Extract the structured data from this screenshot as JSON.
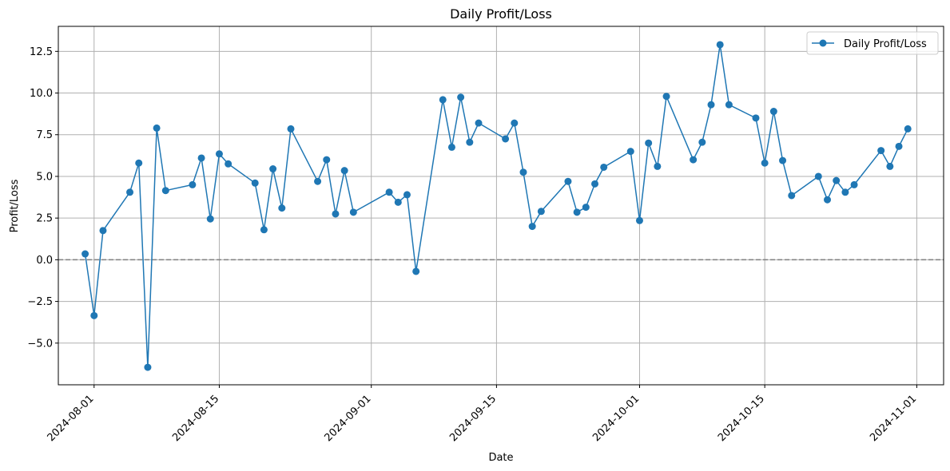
{
  "chart_data": {
    "type": "line",
    "title": "Daily Profit/Loss",
    "xlabel": "Date",
    "ylabel": "Profit/Loss",
    "xlim": [
      "2024-07-28",
      "2024-11-04"
    ],
    "ylim": [
      -7.5,
      14.0
    ],
    "grid": true,
    "legend_position": "top-right",
    "reference_line": 0,
    "x_ticks": [
      "2024-08-01",
      "2024-08-15",
      "2024-09-01",
      "2024-09-15",
      "2024-10-01",
      "2024-10-15",
      "2024-11-01"
    ],
    "y_ticks": [
      -5.0,
      -2.5,
      0.0,
      2.5,
      5.0,
      7.5,
      10.0,
      12.5
    ],
    "y_tick_labels": [
      "−5.0",
      "−2.5",
      "0.0",
      "2.5",
      "5.0",
      "7.5",
      "10.0",
      "12.5"
    ],
    "colors": {
      "series": "#1f77b4",
      "grid": "#b0b0b0",
      "reference": "#808080"
    },
    "series": [
      {
        "name": "Daily Profit/Loss",
        "marker": "circle",
        "points": [
          [
            "2024-07-31",
            0.35
          ],
          [
            "2024-08-01",
            -3.35
          ],
          [
            "2024-08-02",
            1.75
          ],
          [
            "2024-08-05",
            4.05
          ],
          [
            "2024-08-06",
            5.8
          ],
          [
            "2024-08-07",
            -6.45
          ],
          [
            "2024-08-08",
            7.9
          ],
          [
            "2024-08-09",
            4.15
          ],
          [
            "2024-08-12",
            4.5
          ],
          [
            "2024-08-13",
            6.1
          ],
          [
            "2024-08-14",
            2.45
          ],
          [
            "2024-08-15",
            6.35
          ],
          [
            "2024-08-16",
            5.75
          ],
          [
            "2024-08-19",
            4.6
          ],
          [
            "2024-08-20",
            1.8
          ],
          [
            "2024-08-21",
            5.45
          ],
          [
            "2024-08-22",
            3.1
          ],
          [
            "2024-08-23",
            7.85
          ],
          [
            "2024-08-26",
            4.7
          ],
          [
            "2024-08-27",
            6.0
          ],
          [
            "2024-08-28",
            2.75
          ],
          [
            "2024-08-29",
            5.35
          ],
          [
            "2024-08-30",
            2.85
          ],
          [
            "2024-09-03",
            4.05
          ],
          [
            "2024-09-04",
            3.45
          ],
          [
            "2024-09-05",
            3.9
          ],
          [
            "2024-09-06",
            -0.7
          ],
          [
            "2024-09-09",
            9.6
          ],
          [
            "2024-09-10",
            6.75
          ],
          [
            "2024-09-11",
            9.75
          ],
          [
            "2024-09-12",
            7.05
          ],
          [
            "2024-09-13",
            8.2
          ],
          [
            "2024-09-16",
            7.25
          ],
          [
            "2024-09-17",
            8.2
          ],
          [
            "2024-09-18",
            5.25
          ],
          [
            "2024-09-19",
            2.0
          ],
          [
            "2024-09-20",
            2.9
          ],
          [
            "2024-09-23",
            4.7
          ],
          [
            "2024-09-24",
            2.85
          ],
          [
            "2024-09-25",
            3.15
          ],
          [
            "2024-09-26",
            4.55
          ],
          [
            "2024-09-27",
            5.55
          ],
          [
            "2024-09-30",
            6.5
          ],
          [
            "2024-10-01",
            2.35
          ],
          [
            "2024-10-02",
            7.0
          ],
          [
            "2024-10-03",
            5.6
          ],
          [
            "2024-10-04",
            9.8
          ],
          [
            "2024-10-07",
            6.0
          ],
          [
            "2024-10-08",
            7.05
          ],
          [
            "2024-10-09",
            9.3
          ],
          [
            "2024-10-10",
            12.9
          ],
          [
            "2024-10-11",
            9.3
          ],
          [
            "2024-10-14",
            8.5
          ],
          [
            "2024-10-15",
            5.8
          ],
          [
            "2024-10-16",
            8.9
          ],
          [
            "2024-10-17",
            5.95
          ],
          [
            "2024-10-18",
            3.85
          ],
          [
            "2024-10-21",
            5.0
          ],
          [
            "2024-10-22",
            3.6
          ],
          [
            "2024-10-23",
            4.75
          ],
          [
            "2024-10-24",
            4.05
          ],
          [
            "2024-10-25",
            4.5
          ],
          [
            "2024-10-28",
            6.55
          ],
          [
            "2024-10-29",
            5.6
          ],
          [
            "2024-10-30",
            6.8
          ],
          [
            "2024-10-31",
            7.85
          ]
        ]
      }
    ]
  }
}
